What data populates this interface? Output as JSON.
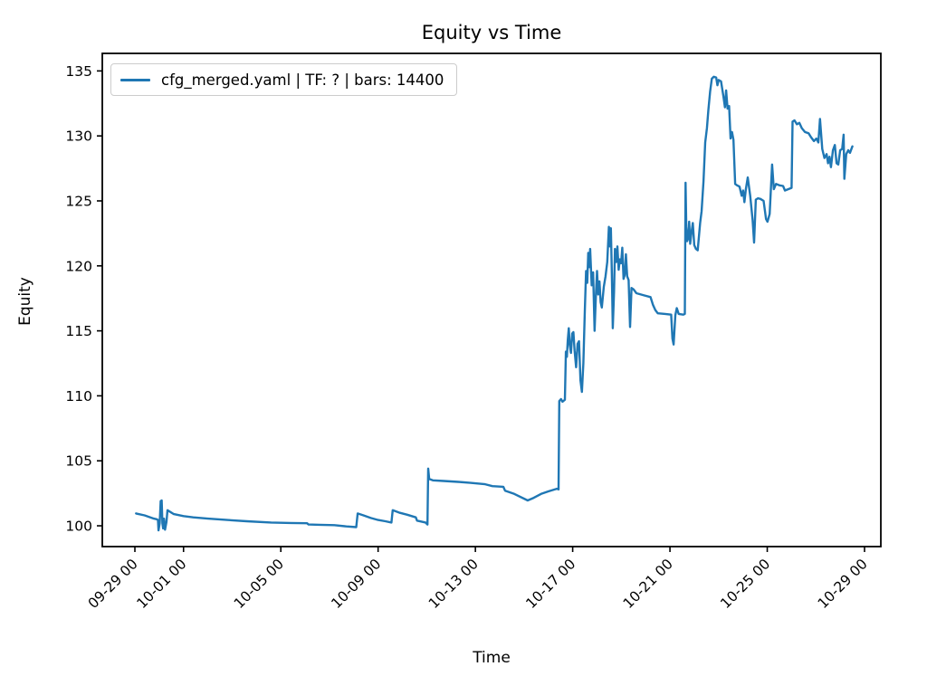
{
  "chart_data": {
    "type": "line",
    "title": "Equity vs Time",
    "xlabel": "Time",
    "ylabel": "Equity",
    "grid": false,
    "legend_position": "upper left",
    "line_color": "#1f77b4",
    "axis_color": "#000000",
    "x_unit": "days since 09-29 00:00",
    "xlim_days": [
      -1.34,
      30.67
    ],
    "ylim": [
      98.4,
      136.35
    ],
    "x_ticks": [
      {
        "day": 0,
        "label": "09-29 00"
      },
      {
        "day": 2,
        "label": "10-01 00"
      },
      {
        "day": 6,
        "label": "10-05 00"
      },
      {
        "day": 10,
        "label": "10-09 00"
      },
      {
        "day": 14,
        "label": "10-13 00"
      },
      {
        "day": 18,
        "label": "10-17 00"
      },
      {
        "day": 22,
        "label": "10-21 00"
      },
      {
        "day": 26,
        "label": "10-25 00"
      },
      {
        "day": 30,
        "label": "10-29 00"
      }
    ],
    "y_ticks": [
      100,
      105,
      110,
      115,
      120,
      125,
      130,
      135
    ],
    "series": [
      {
        "name": "cfg_merged.yaml | TF: ? | bars: 14400",
        "color": "#1f77b4",
        "points": [
          [
            0.05,
            100.95
          ],
          [
            0.4,
            100.8
          ],
          [
            0.78,
            100.55
          ],
          [
            0.9,
            100.5
          ],
          [
            0.95,
            100.45
          ],
          [
            0.97,
            99.65
          ],
          [
            1.02,
            100.2
          ],
          [
            1.06,
            101.9
          ],
          [
            1.1,
            101.95
          ],
          [
            1.13,
            100.2
          ],
          [
            1.16,
            99.8
          ],
          [
            1.2,
            100.55
          ],
          [
            1.24,
            99.7
          ],
          [
            1.3,
            100.3
          ],
          [
            1.34,
            101.2
          ],
          [
            1.6,
            100.9
          ],
          [
            2.0,
            100.75
          ],
          [
            2.4,
            100.65
          ],
          [
            3.0,
            100.55
          ],
          [
            3.8,
            100.45
          ],
          [
            4.6,
            100.35
          ],
          [
            5.6,
            100.25
          ],
          [
            6.4,
            100.22
          ],
          [
            7.08,
            100.2
          ],
          [
            7.14,
            100.1
          ],
          [
            7.6,
            100.08
          ],
          [
            8.2,
            100.05
          ],
          [
            8.7,
            99.95
          ],
          [
            9.1,
            99.9
          ],
          [
            9.16,
            100.95
          ],
          [
            9.4,
            100.8
          ],
          [
            9.7,
            100.6
          ],
          [
            10.0,
            100.45
          ],
          [
            10.3,
            100.35
          ],
          [
            10.55,
            100.25
          ],
          [
            10.6,
            101.2
          ],
          [
            10.9,
            101.0
          ],
          [
            11.2,
            100.85
          ],
          [
            11.55,
            100.65
          ],
          [
            11.6,
            100.4
          ],
          [
            11.95,
            100.25
          ],
          [
            12.0,
            100.15
          ],
          [
            12.03,
            100.1
          ],
          [
            12.06,
            104.4
          ],
          [
            12.1,
            103.6
          ],
          [
            12.25,
            103.5
          ],
          [
            12.7,
            103.45
          ],
          [
            13.3,
            103.38
          ],
          [
            13.8,
            103.3
          ],
          [
            14.4,
            103.2
          ],
          [
            14.7,
            103.05
          ],
          [
            15.15,
            103.0
          ],
          [
            15.22,
            102.7
          ],
          [
            15.6,
            102.45
          ],
          [
            16.15,
            101.95
          ],
          [
            16.4,
            102.15
          ],
          [
            16.7,
            102.45
          ],
          [
            17.0,
            102.65
          ],
          [
            17.35,
            102.85
          ],
          [
            17.42,
            102.8
          ],
          [
            17.45,
            109.6
          ],
          [
            17.52,
            109.75
          ],
          [
            17.58,
            109.55
          ],
          [
            17.68,
            109.7
          ],
          [
            17.72,
            113.4
          ],
          [
            17.76,
            113.0
          ],
          [
            17.8,
            114.3
          ],
          [
            17.84,
            115.2
          ],
          [
            17.88,
            113.9
          ],
          [
            17.93,
            113.3
          ],
          [
            17.98,
            114.8
          ],
          [
            18.03,
            114.9
          ],
          [
            18.08,
            113.5
          ],
          [
            18.14,
            112.2
          ],
          [
            18.2,
            114.0
          ],
          [
            18.26,
            114.2
          ],
          [
            18.32,
            111.2
          ],
          [
            18.38,
            110.3
          ],
          [
            18.44,
            112.5
          ],
          [
            18.5,
            116.5
          ],
          [
            18.55,
            119.6
          ],
          [
            18.6,
            118.7
          ],
          [
            18.64,
            121.0
          ],
          [
            18.68,
            119.9
          ],
          [
            18.72,
            121.3
          ],
          [
            18.78,
            118.5
          ],
          [
            18.84,
            119.5
          ],
          [
            18.9,
            115.0
          ],
          [
            18.96,
            118.0
          ],
          [
            19.0,
            119.6
          ],
          [
            19.05,
            117.8
          ],
          [
            19.1,
            118.8
          ],
          [
            19.15,
            117.2
          ],
          [
            19.2,
            116.8
          ],
          [
            19.28,
            118.4
          ],
          [
            19.35,
            119.2
          ],
          [
            19.42,
            120.3
          ],
          [
            19.49,
            123.0
          ],
          [
            19.53,
            121.5
          ],
          [
            19.57,
            122.9
          ],
          [
            19.61,
            119.3
          ],
          [
            19.65,
            115.2
          ],
          [
            19.7,
            118.0
          ],
          [
            19.74,
            121.3
          ],
          [
            19.79,
            120.3
          ],
          [
            19.84,
            121.5
          ],
          [
            19.89,
            119.7
          ],
          [
            19.94,
            120.5
          ],
          [
            19.99,
            120.2
          ],
          [
            20.04,
            121.4
          ],
          [
            20.09,
            119.0
          ],
          [
            20.14,
            119.3
          ],
          [
            20.19,
            120.9
          ],
          [
            20.24,
            119.2
          ],
          [
            20.3,
            118.9
          ],
          [
            20.36,
            115.3
          ],
          [
            20.42,
            118.3
          ],
          [
            20.5,
            118.2
          ],
          [
            20.62,
            117.9
          ],
          [
            20.9,
            117.75
          ],
          [
            21.2,
            117.6
          ],
          [
            21.3,
            117.0
          ],
          [
            21.4,
            116.6
          ],
          [
            21.5,
            116.35
          ],
          [
            21.8,
            116.3
          ],
          [
            22.05,
            116.25
          ],
          [
            22.1,
            114.4
          ],
          [
            22.15,
            113.95
          ],
          [
            22.22,
            116.2
          ],
          [
            22.28,
            116.75
          ],
          [
            22.36,
            116.3
          ],
          [
            22.55,
            116.25
          ],
          [
            22.61,
            116.3
          ],
          [
            22.64,
            126.4
          ],
          [
            22.67,
            123.0
          ],
          [
            22.71,
            121.9
          ],
          [
            22.75,
            122.1
          ],
          [
            22.79,
            123.4
          ],
          [
            22.83,
            121.7
          ],
          [
            22.88,
            122.5
          ],
          [
            22.94,
            123.3
          ],
          [
            23.0,
            121.6
          ],
          [
            23.07,
            121.3
          ],
          [
            23.14,
            121.2
          ],
          [
            23.24,
            123.3
          ],
          [
            23.3,
            124.2
          ],
          [
            23.38,
            126.5
          ],
          [
            23.45,
            129.5
          ],
          [
            23.52,
            130.6
          ],
          [
            23.58,
            132.0
          ],
          [
            23.65,
            133.4
          ],
          [
            23.72,
            134.4
          ],
          [
            23.8,
            134.55
          ],
          [
            23.9,
            134.5
          ],
          [
            23.95,
            133.9
          ],
          [
            24.0,
            134.3
          ],
          [
            24.1,
            134.2
          ],
          [
            24.2,
            133.0
          ],
          [
            24.26,
            132.2
          ],
          [
            24.31,
            133.5
          ],
          [
            24.37,
            132.1
          ],
          [
            24.43,
            132.3
          ],
          [
            24.49,
            129.8
          ],
          [
            24.55,
            130.3
          ],
          [
            24.61,
            129.7
          ],
          [
            24.68,
            126.3
          ],
          [
            24.76,
            126.2
          ],
          [
            24.86,
            126.1
          ],
          [
            24.95,
            125.4
          ],
          [
            25.01,
            125.8
          ],
          [
            25.06,
            124.9
          ],
          [
            25.12,
            125.9
          ],
          [
            25.2,
            126.8
          ],
          [
            25.3,
            125.4
          ],
          [
            25.4,
            123.5
          ],
          [
            25.46,
            121.8
          ],
          [
            25.53,
            125.1
          ],
          [
            25.62,
            125.2
          ],
          [
            25.72,
            125.15
          ],
          [
            25.85,
            125.0
          ],
          [
            25.95,
            123.6
          ],
          [
            26.01,
            123.4
          ],
          [
            26.1,
            124.0
          ],
          [
            26.2,
            127.8
          ],
          [
            26.27,
            125.9
          ],
          [
            26.36,
            126.3
          ],
          [
            26.5,
            126.2
          ],
          [
            26.65,
            126.15
          ],
          [
            26.73,
            125.8
          ],
          [
            26.86,
            125.9
          ],
          [
            27.0,
            126.0
          ],
          [
            27.04,
            131.1
          ],
          [
            27.12,
            131.2
          ],
          [
            27.22,
            130.9
          ],
          [
            27.32,
            131.0
          ],
          [
            27.42,
            130.6
          ],
          [
            27.55,
            130.3
          ],
          [
            27.7,
            130.2
          ],
          [
            27.8,
            129.9
          ],
          [
            27.92,
            129.6
          ],
          [
            28.02,
            129.8
          ],
          [
            28.1,
            129.5
          ],
          [
            28.17,
            131.3
          ],
          [
            28.26,
            129.0
          ],
          [
            28.35,
            128.3
          ],
          [
            28.44,
            128.6
          ],
          [
            28.5,
            127.9
          ],
          [
            28.56,
            128.4
          ],
          [
            28.62,
            127.6
          ],
          [
            28.7,
            128.9
          ],
          [
            28.78,
            129.3
          ],
          [
            28.85,
            127.9
          ],
          [
            28.92,
            127.8
          ],
          [
            29.0,
            128.9
          ],
          [
            29.08,
            129.0
          ],
          [
            29.14,
            130.1
          ],
          [
            29.17,
            126.7
          ],
          [
            29.25,
            128.6
          ],
          [
            29.33,
            128.9
          ],
          [
            29.4,
            128.7
          ],
          [
            29.5,
            129.2
          ]
        ]
      }
    ]
  }
}
